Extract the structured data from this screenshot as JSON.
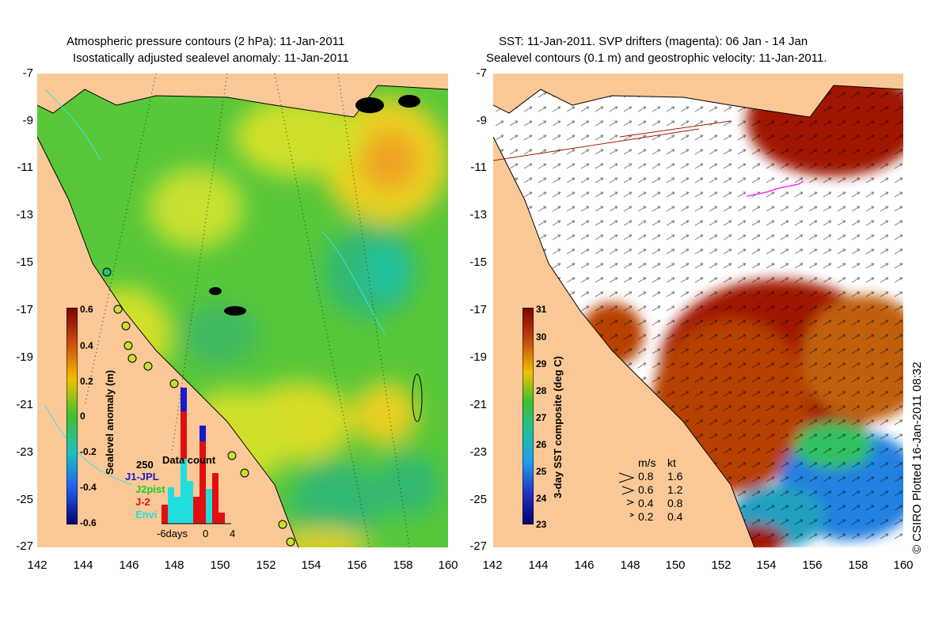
{
  "left_panel": {
    "title_line1": "Atmospheric pressure contours (2 hPa): 11-Jan-2011",
    "title_line2": "Isostatically adjusted sealevel anomaly: 11-Jan-2011",
    "colorbar_label": "Sealevel anomaly (m)",
    "colorbar_ticks": [
      "0.6",
      "0.4",
      "0.2",
      "0",
      "-0.2",
      "-0.4",
      "-0.6"
    ],
    "data_count": {
      "title": "Data count",
      "max_label": "250",
      "legend": [
        {
          "label": "J1-JPL",
          "color": "#1a1acc"
        },
        {
          "label": "J2pist",
          "color": "#22cc22"
        },
        {
          "label": "J-2",
          "color": "#e01010"
        },
        {
          "label": "Envi",
          "color": "#22dddd"
        }
      ],
      "x_labels": [
        "-6days",
        "0",
        "4"
      ]
    }
  },
  "right_panel": {
    "title_line1": "SST: 11-Jan-2011. SVP drifters (magenta): 06 Jan - 14 Jan",
    "title_line2": "Sealevel contours (0.1 m) and geostrophic velocity: 11-Jan-2011.",
    "colorbar_label": "3-day SST composite (deg C)",
    "colorbar_ticks": [
      "31",
      "30",
      "29",
      "28",
      "27",
      "26",
      "25",
      "24",
      "23"
    ],
    "speed_legend": {
      "header_ms": "m/s",
      "header_kt": "kt",
      "rows": [
        {
          "ms": "0.8",
          "kt": "1.6"
        },
        {
          "ms": "0.6",
          "kt": "1.2"
        },
        {
          "ms": "0.4",
          "kt": "0.8"
        },
        {
          "ms": "0.2",
          "kt": "0.4"
        }
      ]
    }
  },
  "axes": {
    "x_ticks": [
      "142",
      "144",
      "146",
      "148",
      "150",
      "152",
      "154",
      "156",
      "158",
      "160"
    ],
    "y_ticks": [
      "-7",
      "-9",
      "-11",
      "-13",
      "-15",
      "-17",
      "-19",
      "-21",
      "-23",
      "-25",
      "-27"
    ]
  },
  "credit": "© CSIRO Plotted 16-Jan-2011 08:32",
  "colors": {
    "land": "#f9c896",
    "sea_green": "#4fc93a",
    "sea_yellow": "#d8e02a",
    "sst_red": "#a01800",
    "cyan": "#40e0e0"
  }
}
